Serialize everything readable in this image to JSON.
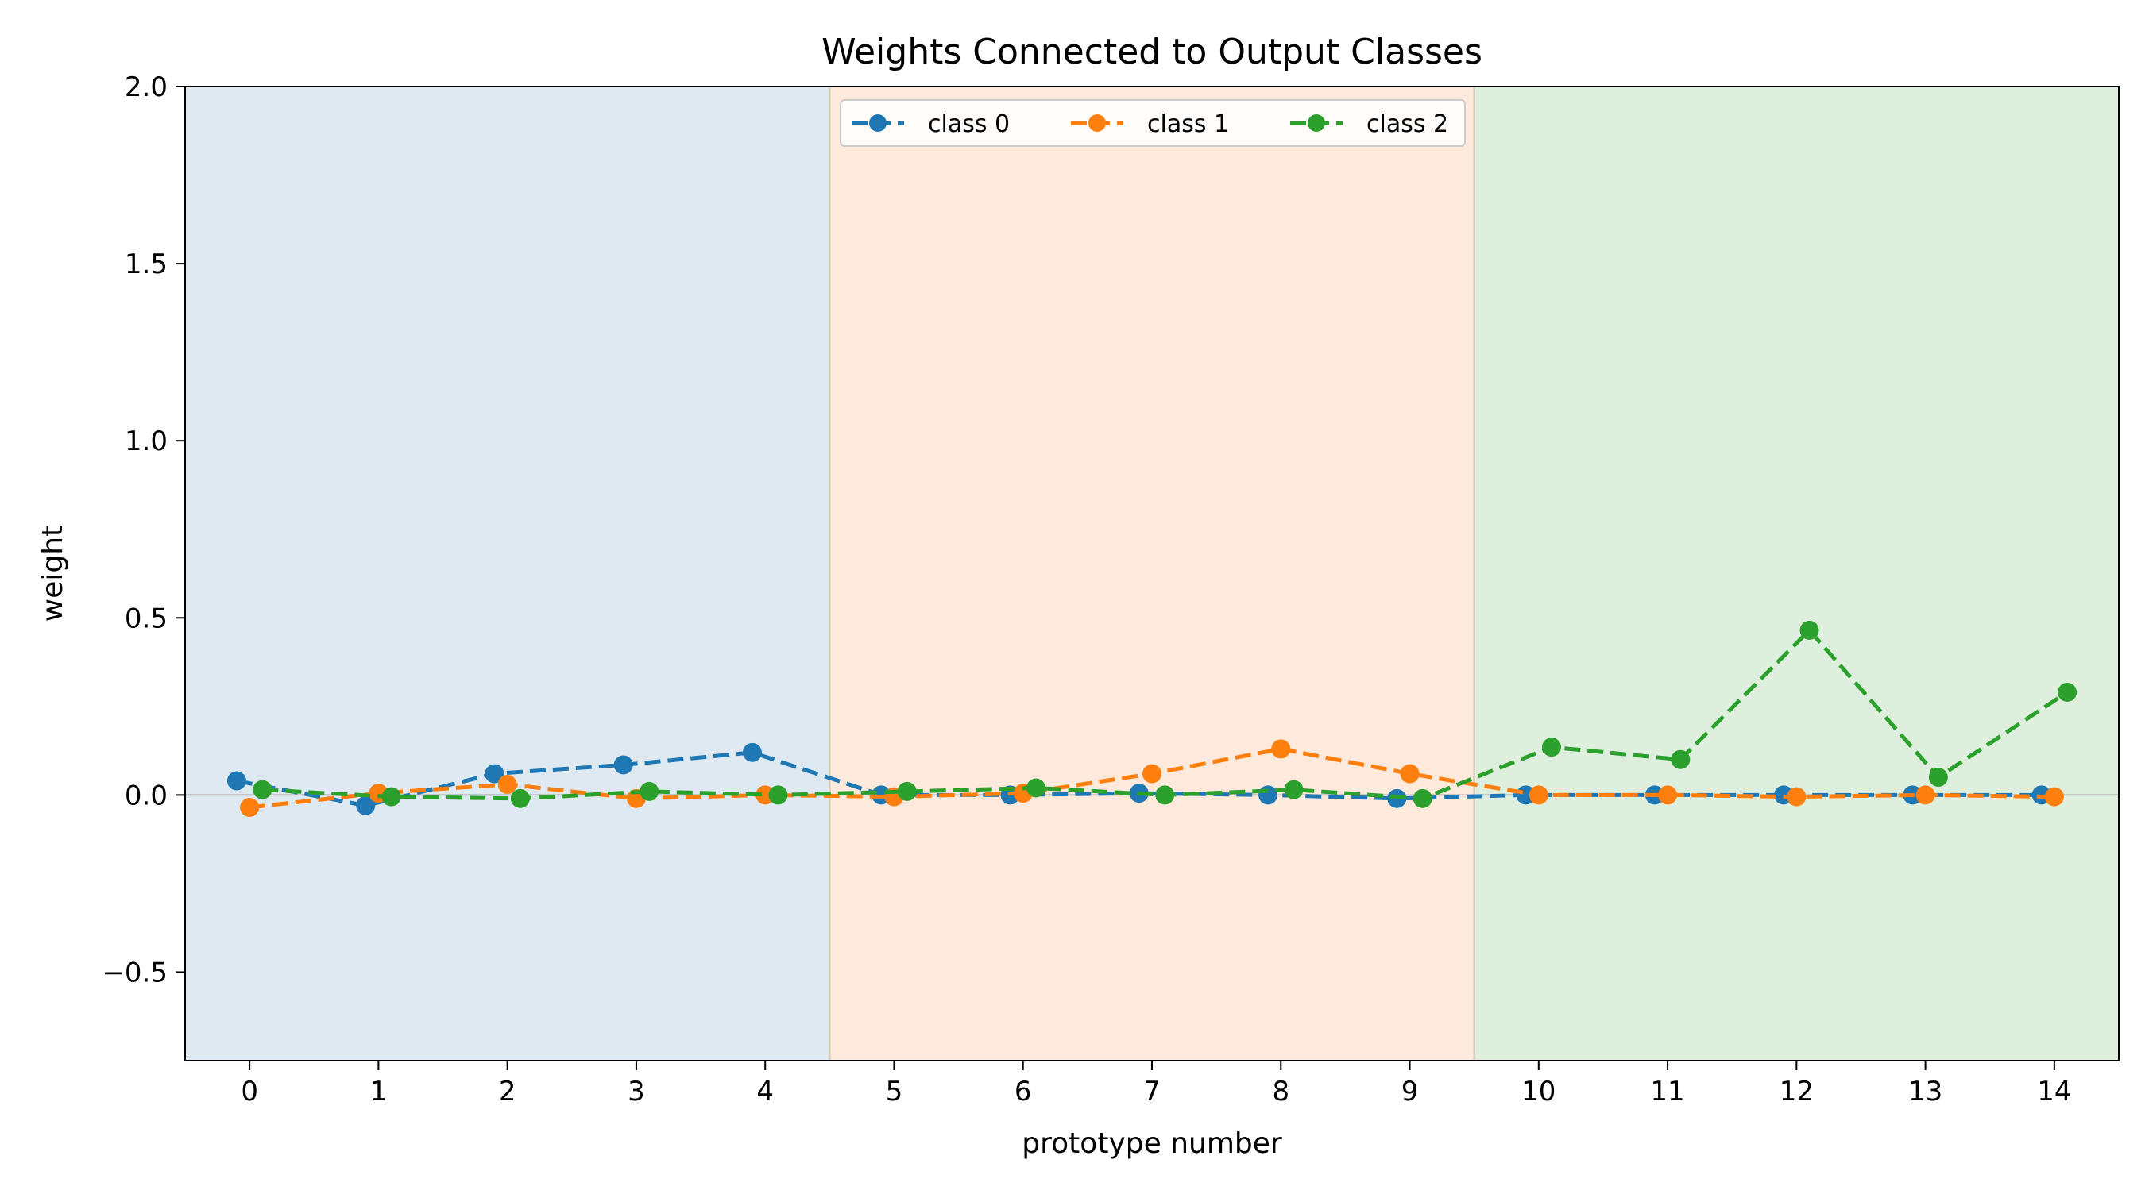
{
  "chart_data": {
    "type": "line",
    "title": "Weights Connected to Output Classes",
    "xlabel": "prototype number",
    "ylabel": "weight",
    "xlim": [
      -0.5,
      14.5
    ],
    "ylim": [
      -0.75,
      2.0
    ],
    "x": [
      0,
      1,
      2,
      3,
      4,
      5,
      6,
      7,
      8,
      9,
      10,
      11,
      12,
      13,
      14
    ],
    "x_ticks": [
      "0",
      "1",
      "2",
      "3",
      "4",
      "5",
      "6",
      "7",
      "8",
      "9",
      "10",
      "11",
      "12",
      "13",
      "14"
    ],
    "y_ticks": [
      {
        "value": -0.5,
        "label": "−0.5"
      },
      {
        "value": 0.0,
        "label": "0.0"
      },
      {
        "value": 0.5,
        "label": "0.5"
      },
      {
        "value": 1.0,
        "label": "1.0"
      },
      {
        "value": 1.5,
        "label": "1.5"
      },
      {
        "value": 2.0,
        "label": "2.0"
      }
    ],
    "grid": false,
    "zero_line": true,
    "legend": {
      "placement": "upper center",
      "columns": 3
    },
    "regions": [
      {
        "from": -0.5,
        "to": 4.5,
        "color": "#dee9f2"
      },
      {
        "from": 4.5,
        "to": 9.5,
        "color": "#fdeadc"
      },
      {
        "from": 9.5,
        "to": 14.5,
        "color": "#dfefdd"
      }
    ],
    "series": [
      {
        "name": "class 0",
        "color": "#1f77b4",
        "x_offset": -0.1,
        "values": [
          0.04,
          -0.03,
          0.06,
          0.085,
          0.12,
          0.0,
          0.0,
          0.005,
          0.0,
          -0.01,
          0.0,
          0.0,
          0.0,
          0.0,
          0.0
        ]
      },
      {
        "name": "class 1",
        "color": "#ff7f0e",
        "x_offset": 0.0,
        "values": [
          -0.035,
          0.005,
          0.03,
          -0.01,
          0.0,
          -0.005,
          0.005,
          0.06,
          0.13,
          0.06,
          0.0,
          0.0,
          -0.005,
          0.0,
          -0.005
        ]
      },
      {
        "name": "class 2",
        "color": "#2ca02c",
        "x_offset": 0.1,
        "values": [
          0.015,
          -0.005,
          -0.01,
          0.01,
          0.0,
          0.01,
          0.02,
          0.0,
          0.015,
          -0.01,
          0.135,
          0.1,
          0.465,
          0.05,
          0.29
        ]
      }
    ]
  }
}
